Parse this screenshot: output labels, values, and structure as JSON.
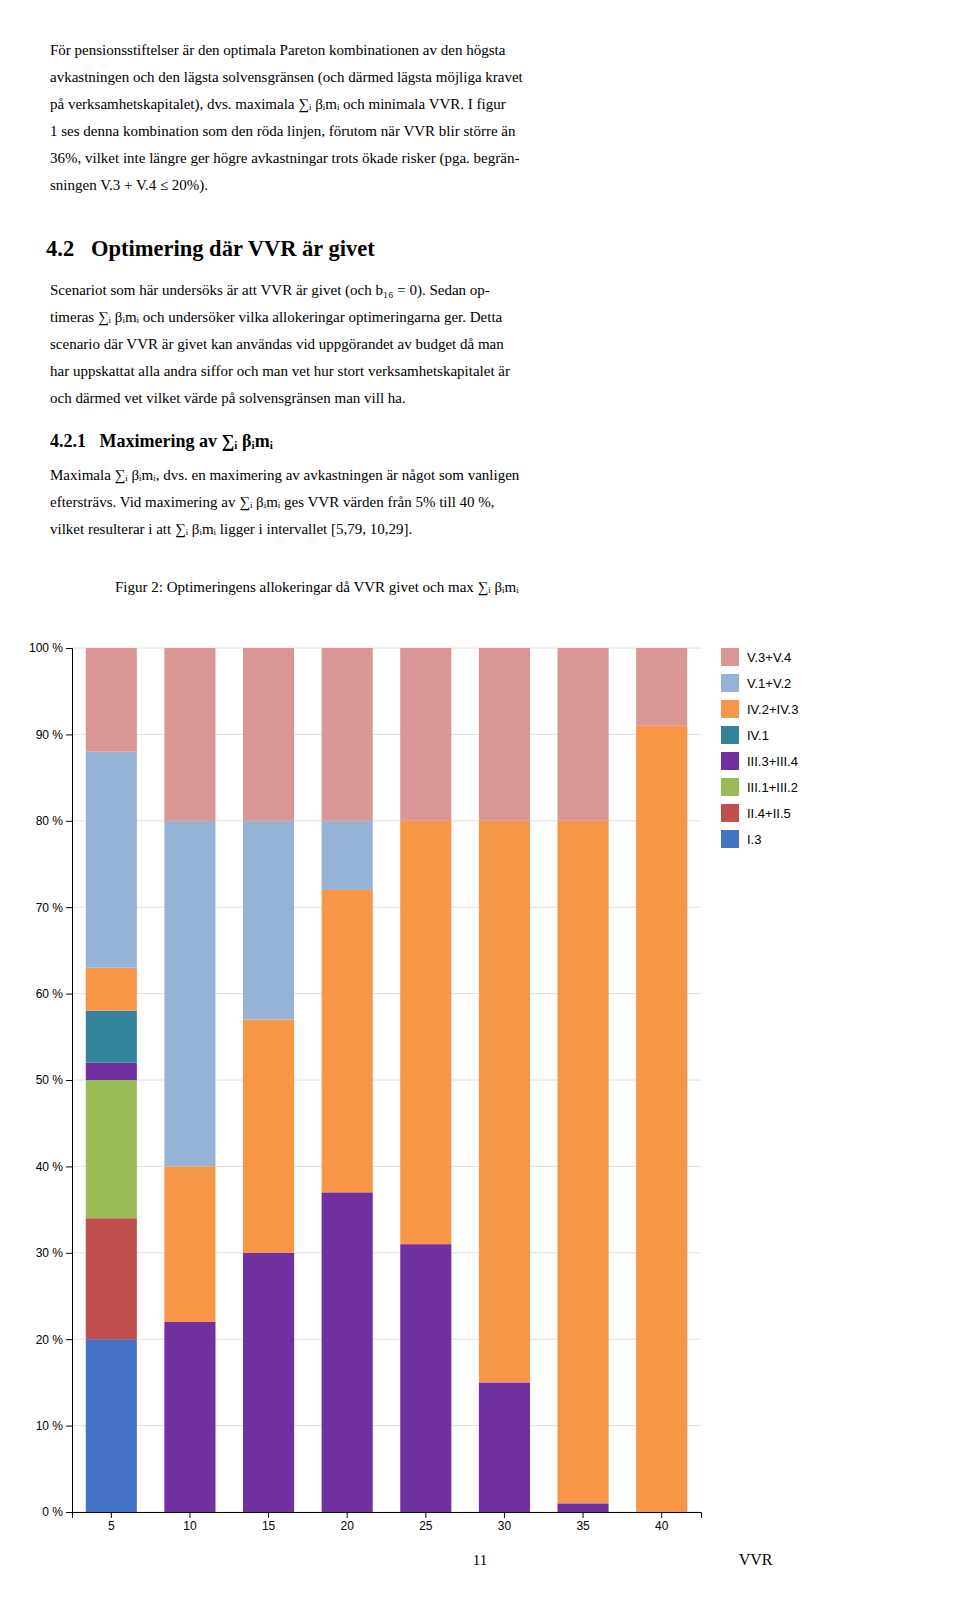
{
  "page": {
    "blocks": [
      {
        "type": "paragraph",
        "lines": [
          "För pensionsstiftelser är den optimala Pareton kombinationen av den högsta",
          "avkastningen och den lägsta solvensgränsen (och därmed lägsta möjliga kravet",
          "på verksamhetskapitalet), dvs. maximala ∑ᵢ βᵢmᵢ och minimala VVR. I figur",
          "1 ses denna kombination som den röda linjen, förutom när VVR blir större än",
          "36%, vilket inte längre ger högre avkastningar trots ökade risker (pga. begrän-",
          "sningen V.3 + V.4 ≤ 20%)."
        ]
      },
      {
        "type": "heading",
        "text": "4.2   Optimering där VVR är givet"
      },
      {
        "type": "paragraph",
        "lines": [
          "Scenariot som här undersöks är att VVR är givet (och b₁₆ = 0). Sedan op-",
          "timeras ∑ᵢ βᵢmᵢ och undersöker vilka allokeringar optimeringarna ger. Detta",
          "scenario där VVR är givet kan användas vid uppgörandet av budget då man",
          "har uppskattat alla andra siffor och man vet hur stort verksamhetskapitalet är",
          "och därmed vet vilket värde på solvensgränsen man vill ha."
        ]
      },
      {
        "type": "subheading",
        "text": "4.2.1   Maximering av ∑ᵢ βᵢmᵢ"
      },
      {
        "type": "paragraph",
        "lines": [
          "Maximala ∑ᵢ βᵢmᵢ, dvs. en maximering av avkastningen är något som vanligen",
          "eftersträvs. Vid maximering av ∑ᵢ βᵢmᵢ ges VVR värden från 5% till 40 %,",
          "vilket resulterar i att ∑ᵢ βᵢmᵢ ligger i intervallet [5,79, 10,29]."
        ]
      }
    ],
    "page_number": "11"
  },
  "chart_data": {
    "type": "bar",
    "stacked": true,
    "title": "Figur 2: Optimeringens allokeringar då VVR givet och max ∑ᵢ βᵢmᵢ",
    "xlabel": "VVR",
    "categories": [
      5,
      10,
      15,
      20,
      25,
      30,
      35,
      40
    ],
    "series": [
      {
        "name": "I.3",
        "color": "#4472C4",
        "values": [
          20,
          0,
          0,
          0,
          0,
          0,
          0,
          0
        ]
      },
      {
        "name": "II.4+II.5",
        "color": "#C0504D",
        "values": [
          14,
          0,
          0,
          0,
          0,
          0,
          0,
          0
        ]
      },
      {
        "name": "III.1+III.2",
        "color": "#9BBB59",
        "values": [
          16,
          0,
          0,
          0,
          0,
          0,
          0,
          0
        ]
      },
      {
        "name": "III.3+III.4",
        "color": "#7030A0",
        "values": [
          2,
          22,
          30,
          37,
          31,
          15,
          1,
          0
        ]
      },
      {
        "name": "IV.1",
        "color": "#31849B",
        "values": [
          6,
          0,
          0,
          0,
          0,
          0,
          0,
          0
        ]
      },
      {
        "name": "IV.2+IV.3",
        "color": "#F79646",
        "values": [
          5,
          18,
          27,
          35,
          49,
          65,
          79,
          91
        ]
      },
      {
        "name": "V.1+V.2",
        "color": "#95B3D7",
        "values": [
          25,
          40,
          23,
          8,
          0,
          0,
          0,
          0
        ]
      },
      {
        "name": "V.3+V.4",
        "color": "#D99694",
        "values": [
          12,
          20,
          20,
          20,
          20,
          20,
          20,
          9
        ]
      }
    ],
    "ylim": [
      0,
      100
    ],
    "yticks": [
      {
        "value": 0,
        "label": "0 %"
      },
      {
        "value": 10,
        "label": "10 %"
      },
      {
        "value": 20,
        "label": "20 %"
      },
      {
        "value": 30,
        "label": "30 %"
      },
      {
        "value": 40,
        "label": "40 %"
      },
      {
        "value": 50,
        "label": "50 %"
      },
      {
        "value": 60,
        "label": "60 %"
      },
      {
        "value": 70,
        "label": "70 %"
      },
      {
        "value": 80,
        "label": "80 %"
      },
      {
        "value": 90,
        "label": "90 %"
      },
      {
        "value": 100,
        "label": "100 %"
      }
    ],
    "grid": true,
    "legend": "right"
  }
}
